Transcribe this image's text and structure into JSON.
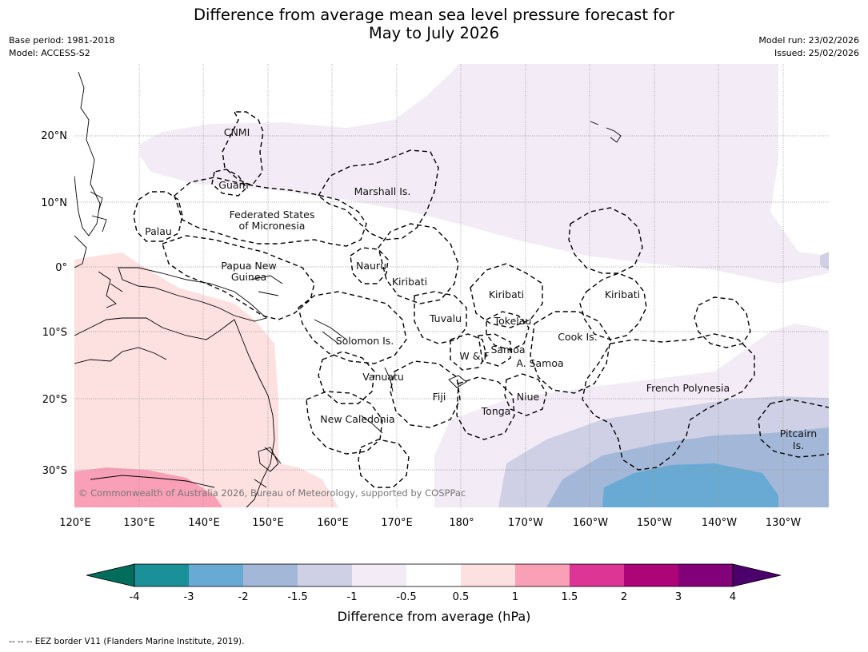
{
  "title_line1": "Difference from average mean sea level pressure forecast for",
  "title_line2": "May to July 2026",
  "base_period": "Base period: 1981-2018",
  "model": "Model: ACCESS-S2",
  "model_run": "Model run: 23/02/2026",
  "issued": "Issued: 25/02/2026",
  "map": {
    "lon_ticks": [
      "120°E",
      "130°E",
      "140°E",
      "150°E",
      "160°E",
      "170°E",
      "180°",
      "170°W",
      "160°W",
      "150°W",
      "140°W",
      "130°W"
    ],
    "lat_ticks": [
      "20°N",
      "10°N",
      "0°",
      "10°S",
      "20°S",
      "30°S"
    ],
    "regions": {
      "cnmi": "CNMI",
      "guam": "Guam",
      "marshall": "Marshall Is.",
      "fsm_1": "Federated States",
      "fsm_2": "of Micronesia",
      "palau": "Palau",
      "png_1": "Papua New",
      "png_2": "Guinea",
      "nauru": "Nauru",
      "kiribati_w": "Kiribati",
      "kiribati_c": "Kiribati",
      "kiribati_e": "Kiribati",
      "tuvalu": "Tuvalu",
      "tokelau": "Tokelau",
      "solomon": "Solomon Is.",
      "samoa": "Samoa",
      "wallis": "W & F",
      "amsamoa": "A. Samoa",
      "cook": "Cook Is.",
      "vanuatu": "Vanuatu",
      "fiji": "Fiji",
      "niue": "Niue",
      "tonga": "Tonga",
      "frpoly": "French Polynesia",
      "newcal": "New Caledonia",
      "pitcairn_1": "Pitcairn",
      "pitcairn_2": "Is."
    },
    "credit": "© Commonwealth of Australia 2026, Bureau of Meteorology, supported by COSPPac"
  },
  "colorbar": {
    "title": "Difference from average (hPa)",
    "ticks": [
      "-4",
      "-3",
      "-2",
      "-1.5",
      "-1",
      "-0.5",
      "0.5",
      "1",
      "1.5",
      "2",
      "3",
      "4"
    ],
    "colors": [
      "#1a9199",
      "#68aad3",
      "#a3b8d8",
      "#cfd0e6",
      "#f3ecf6",
      "#ffffff",
      "#fde0e0",
      "#f9a0b6",
      "#dc3596",
      "#ad0478",
      "#820078"
    ],
    "under_color": "#006d5c",
    "over_color": "#4b006b"
  },
  "footnote": "--  --  -- EEZ border V11 (Flanders Marine Institute, 2019)."
}
